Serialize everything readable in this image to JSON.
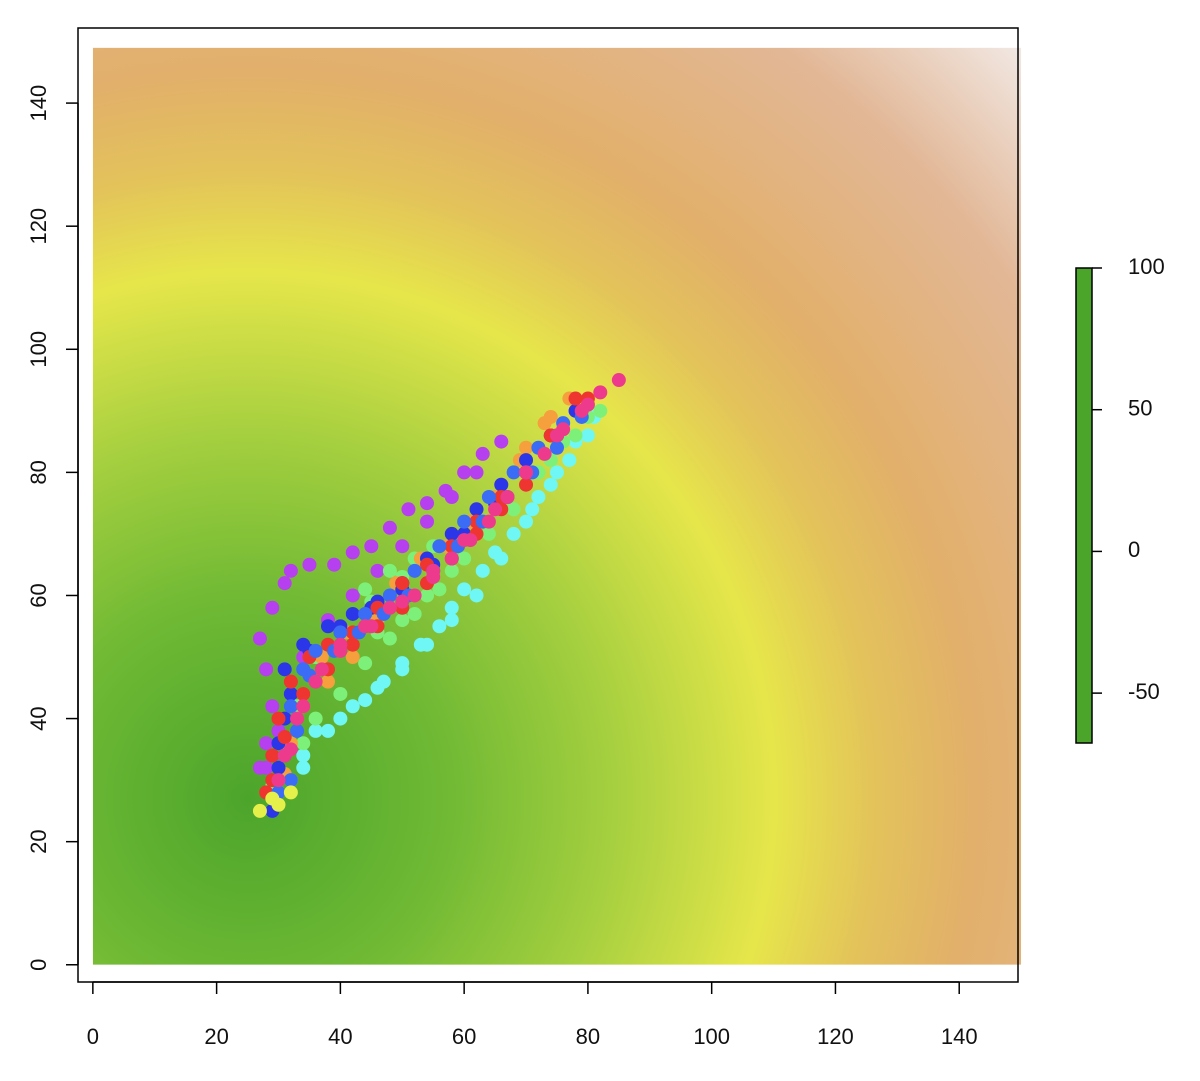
{
  "chart_data": {
    "type": "scatter",
    "xlim": [
      -2.4,
      149.5
    ],
    "ylim": [
      -2.8,
      152.2
    ],
    "xticks": [
      0,
      20,
      40,
      60,
      80,
      100,
      120,
      140
    ],
    "yticks": [
      0,
      20,
      40,
      60,
      80,
      100,
      120,
      140
    ],
    "surface": {
      "x": [
        0,
        150
      ],
      "y": [
        0,
        149
      ],
      "center": [
        25,
        27
      ],
      "z_at_center": 100,
      "z_slope": -0.94
    },
    "zlim": [
      -67.6,
      100
    ],
    "zticks": [
      100,
      50,
      0,
      -50
    ],
    "colormap": [
      {
        "value": 100,
        "color": "#4ca52b"
      },
      {
        "value": 70,
        "color": "#6fb934"
      },
      {
        "value": 45,
        "color": "#a4cf3f"
      },
      {
        "value": 20,
        "color": "#e6e64a"
      },
      {
        "value": 5,
        "color": "#e3c35a"
      },
      {
        "value": -10,
        "color": "#e2b06a"
      },
      {
        "value": -40,
        "color": "#e2b796"
      },
      {
        "value": -67.6,
        "color": "#f4f0f0"
      }
    ],
    "series": [
      {
        "color": "#b63ff0",
        "x": [
          27,
          28,
          29,
          28,
          27,
          29,
          31,
          32,
          35,
          39,
          42,
          45,
          48,
          51,
          54,
          57,
          60,
          63,
          66,
          62,
          58,
          54,
          50,
          46,
          42,
          38,
          34,
          32,
          30,
          28
        ],
        "values": [
          32,
          36,
          42,
          48,
          53,
          58,
          62,
          64,
          65,
          65,
          67,
          68,
          71,
          74,
          75,
          77,
          80,
          83,
          85,
          80,
          76,
          72,
          68,
          64,
          60,
          56,
          50,
          44,
          38,
          32
        ]
      },
      {
        "color": "#6ff7f5",
        "x": [
          30,
          34,
          36,
          40,
          44,
          47,
          50,
          53,
          56,
          58,
          60,
          63,
          65,
          68,
          71,
          74,
          77,
          80,
          81,
          78,
          75,
          72,
          70,
          66,
          62,
          58,
          54,
          50,
          46,
          42,
          38,
          34
        ],
        "values": [
          28,
          34,
          38,
          40,
          43,
          46,
          49,
          52,
          55,
          58,
          61,
          64,
          67,
          70,
          74,
          78,
          82,
          86,
          89,
          85,
          80,
          76,
          72,
          66,
          60,
          56,
          52,
          48,
          45,
          42,
          38,
          32
        ]
      },
      {
        "color": "#7df07a",
        "x": [
          29,
          32,
          34,
          36,
          40,
          44,
          48,
          52,
          56,
          60,
          64,
          68,
          72,
          76,
          80,
          82,
          78,
          74,
          70,
          66,
          62,
          58,
          54,
          50,
          46,
          42,
          44,
          48,
          52,
          55,
          50,
          45,
          40,
          36,
          33,
          31
        ],
        "values": [
          29,
          30,
          36,
          40,
          44,
          49,
          53,
          57,
          61,
          66,
          70,
          74,
          80,
          85,
          89,
          90,
          86,
          82,
          78,
          74,
          70,
          64,
          60,
          56,
          54,
          57,
          61,
          64,
          66,
          68,
          63,
          59,
          55,
          50,
          42,
          36
        ]
      },
      {
        "color": "#f5a03c",
        "x": [
          31,
          32,
          34,
          38,
          42,
          46,
          50,
          54,
          58,
          62,
          66,
          70,
          74,
          77,
          73,
          69,
          65,
          61,
          57,
          53,
          49,
          45,
          41,
          37,
          34
        ],
        "values": [
          31,
          36,
          42,
          46,
          50,
          56,
          61,
          66,
          70,
          74,
          78,
          84,
          89,
          92,
          88,
          82,
          76,
          72,
          68,
          66,
          62,
          58,
          54,
          50,
          44
        ]
      },
      {
        "color": "#2b36e8",
        "x": [
          29,
          30,
          31,
          31,
          34,
          38,
          42,
          46,
          50,
          54,
          58,
          62,
          66,
          70,
          74,
          78,
          75,
          70,
          65,
          60,
          55,
          50,
          45,
          40,
          35,
          32,
          30
        ],
        "values": [
          25,
          32,
          40,
          48,
          52,
          55,
          57,
          59,
          62,
          66,
          70,
          74,
          78,
          82,
          86,
          90,
          86,
          80,
          75,
          70,
          65,
          61,
          58,
          55,
          51,
          44,
          36
        ]
      },
      {
        "color": "#ee3530",
        "x": [
          28,
          29,
          30,
          32,
          35,
          38,
          42,
          46,
          50,
          54,
          58,
          62,
          66,
          70,
          74,
          78,
          80,
          75,
          70,
          66,
          62,
          58,
          54,
          50,
          46,
          42,
          38,
          34,
          31,
          29
        ],
        "values": [
          28,
          34,
          40,
          46,
          50,
          52,
          54,
          58,
          62,
          65,
          68,
          72,
          76,
          80,
          86,
          92,
          92,
          86,
          78,
          74,
          70,
          66,
          62,
          58,
          55,
          52,
          48,
          44,
          37,
          30
        ]
      },
      {
        "color": "#3a6cf5",
        "x": [
          30,
          31,
          32,
          34,
          36,
          40,
          44,
          48,
          52,
          56,
          60,
          64,
          68,
          72,
          76,
          79,
          75,
          71,
          67,
          63,
          59,
          55,
          51,
          47,
          43,
          39,
          35,
          33,
          32
        ],
        "values": [
          28,
          34,
          42,
          48,
          51,
          54,
          57,
          60,
          64,
          68,
          72,
          76,
          80,
          84,
          88,
          89,
          84,
          80,
          76,
          72,
          68,
          64,
          60,
          57,
          54,
          51,
          47,
          38,
          30
        ]
      },
      {
        "color": "#ee3a8c",
        "x": [
          30,
          32,
          34,
          37,
          40,
          44,
          48,
          52,
          55,
          58,
          61,
          64,
          67,
          70,
          73,
          76,
          79,
          82,
          85,
          80,
          75,
          70,
          65,
          60,
          55,
          50,
          45,
          40,
          36,
          33,
          31
        ],
        "values": [
          30,
          35,
          42,
          48,
          52,
          55,
          58,
          60,
          63,
          66,
          69,
          72,
          76,
          80,
          83,
          87,
          90,
          93,
          95,
          91,
          86,
          80,
          74,
          69,
          64,
          59,
          55,
          51,
          46,
          40,
          34
        ]
      },
      {
        "color": "#e6f04a",
        "x": [
          27,
          29,
          32,
          30
        ],
        "values": [
          25,
          27,
          28,
          26
        ]
      }
    ]
  }
}
